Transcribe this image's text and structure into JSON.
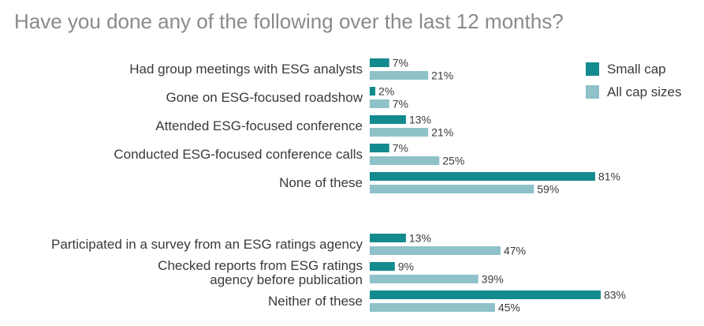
{
  "chart_data": {
    "type": "bar",
    "orientation": "horizontal",
    "title": "Have you done any of the following over the last 12 months?",
    "legend_position": "top-right",
    "grid": false,
    "unit": "%",
    "series": [
      {
        "name": "Small cap",
        "color": "#138a8e"
      },
      {
        "name": "All cap sizes",
        "color": "#8fc1c8"
      }
    ],
    "groups": [
      {
        "categories": [
          {
            "label": [
              "Had group meetings with ESG analysts"
            ],
            "values": [
              7,
              21
            ]
          },
          {
            "label": [
              "Gone on ESG-focused roadshow"
            ],
            "values": [
              2,
              7
            ]
          },
          {
            "label": [
              "Attended ESG-focused conference"
            ],
            "values": [
              13,
              21
            ]
          },
          {
            "label": [
              "Conducted ESG-focused conference calls"
            ],
            "values": [
              7,
              25
            ]
          },
          {
            "label": [
              "None of these"
            ],
            "values": [
              81,
              59
            ]
          }
        ]
      },
      {
        "categories": [
          {
            "label": [
              "Participated in a survey from an ESG ratings agency"
            ],
            "values": [
              13,
              47
            ]
          },
          {
            "label": [
              "Checked reports from ESG ratings",
              "agency before publication"
            ],
            "values": [
              9,
              39
            ]
          },
          {
            "label": [
              "Neither of these"
            ],
            "values": [
              83,
              45
            ]
          }
        ]
      }
    ]
  }
}
